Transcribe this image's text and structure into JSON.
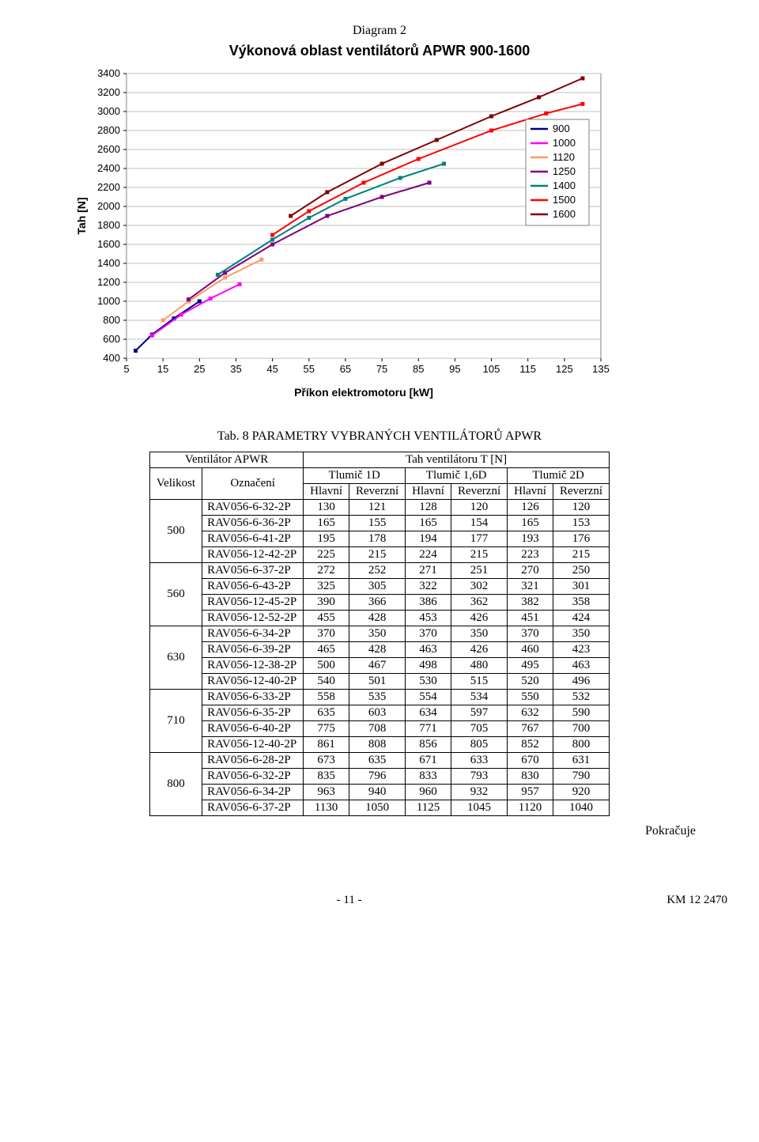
{
  "diagram_label": "Diagram 2",
  "chart": {
    "title": "Výkonová oblast ventilátorů APWR 900-1600",
    "xlabel": "Příkon elektromotoru [kW]",
    "ylabel": "Tah [N]",
    "background_color": "#ffffff",
    "plot_bg": "#ffffff",
    "plot_border": "#808080",
    "grid_color": "#c0c0c0",
    "xlim": [
      5,
      135
    ],
    "ylim": [
      400,
      3400
    ],
    "xtick_step": 10,
    "ytick_step": 200,
    "line_width": 2,
    "series": [
      {
        "name": "900",
        "color": "#000080",
        "pts": [
          [
            7.5,
            480
          ],
          [
            12,
            650
          ],
          [
            18,
            820
          ],
          [
            25,
            1000
          ]
        ]
      },
      {
        "name": "1000",
        "color": "#ff00ff",
        "pts": [
          [
            12,
            640
          ],
          [
            20,
            860
          ],
          [
            28,
            1030
          ],
          [
            36,
            1180
          ]
        ]
      },
      {
        "name": "1120",
        "color": "#ff9966",
        "pts": [
          [
            15,
            800
          ],
          [
            22,
            1000
          ],
          [
            32,
            1250
          ],
          [
            42,
            1440
          ]
        ]
      },
      {
        "name": "1250",
        "color": "#800080",
        "pts": [
          [
            22,
            1020
          ],
          [
            32,
            1300
          ],
          [
            45,
            1600
          ],
          [
            60,
            1900
          ],
          [
            75,
            2100
          ],
          [
            88,
            2250
          ]
        ]
      },
      {
        "name": "1400",
        "color": "#008080",
        "pts": [
          [
            30,
            1280
          ],
          [
            45,
            1650
          ],
          [
            55,
            1880
          ],
          [
            65,
            2080
          ],
          [
            80,
            2300
          ],
          [
            92,
            2450
          ]
        ]
      },
      {
        "name": "1500",
        "color": "#ff0000",
        "pts": [
          [
            45,
            1700
          ],
          [
            55,
            1950
          ],
          [
            70,
            2250
          ],
          [
            85,
            2500
          ],
          [
            105,
            2800
          ],
          [
            120,
            2980
          ],
          [
            130,
            3080
          ]
        ]
      },
      {
        "name": "1600",
        "color": "#800000",
        "pts": [
          [
            50,
            1900
          ],
          [
            60,
            2150
          ],
          [
            75,
            2450
          ],
          [
            90,
            2700
          ],
          [
            105,
            2950
          ],
          [
            118,
            3150
          ],
          [
            130,
            3350
          ]
        ]
      }
    ],
    "legend_bg": "#ffffff",
    "legend_border": "#808080"
  },
  "table_caption": "Tab. 8  PARAMETRY  VYBRANÝCH  VENTILÁTORŮ  APWR",
  "table": {
    "h1_left": "Ventilátor APWR",
    "h1_right": "Tah ventilátoru  T  [N]",
    "h2_size": "Velikost",
    "h2_name": "Označení",
    "h2_t1d": "Tlumič 1D",
    "h2_t16d": "Tlumič 1,6D",
    "h2_t2d": "Tlumič 2D",
    "h3_main": "Hlavní",
    "h3_rev": "Reverzní",
    "groups": [
      {
        "size": "500",
        "rows": [
          {
            "name": "RAV056-6-32-2P",
            "v": [
              130,
              121,
              128,
              120,
              126,
              120
            ]
          },
          {
            "name": "RAV056-6-36-2P",
            "v": [
              165,
              155,
              165,
              154,
              165,
              153
            ]
          },
          {
            "name": "RAV056-6-41-2P",
            "v": [
              195,
              178,
              194,
              177,
              193,
              176
            ]
          },
          {
            "name": "RAV056-12-42-2P",
            "v": [
              225,
              215,
              224,
              215,
              223,
              215
            ]
          }
        ]
      },
      {
        "size": "560",
        "rows": [
          {
            "name": "RAV056-6-37-2P",
            "v": [
              272,
              252,
              271,
              251,
              270,
              250
            ]
          },
          {
            "name": "RAV056-6-43-2P",
            "v": [
              325,
              305,
              322,
              302,
              321,
              301
            ]
          },
          {
            "name": "RAV056-12-45-2P",
            "v": [
              390,
              366,
              386,
              362,
              382,
              358
            ]
          },
          {
            "name": "RAV056-12-52-2P",
            "v": [
              455,
              428,
              453,
              426,
              451,
              424
            ]
          }
        ]
      },
      {
        "size": "630",
        "rows": [
          {
            "name": "RAV056-6-34-2P",
            "v": [
              370,
              350,
              370,
              350,
              370,
              350
            ]
          },
          {
            "name": "RAV056-6-39-2P",
            "v": [
              465,
              428,
              463,
              426,
              460,
              423
            ]
          },
          {
            "name": "RAV056-12-38-2P",
            "v": [
              500,
              467,
              498,
              480,
              495,
              463
            ]
          },
          {
            "name": "RAV056-12-40-2P",
            "v": [
              540,
              501,
              530,
              515,
              520,
              496
            ]
          }
        ]
      },
      {
        "size": "710",
        "rows": [
          {
            "name": "RAV056-6-33-2P",
            "v": [
              558,
              535,
              554,
              534,
              550,
              532
            ]
          },
          {
            "name": "RAV056-6-35-2P",
            "v": [
              635,
              603,
              634,
              597,
              632,
              590
            ]
          },
          {
            "name": "RAV056-6-40-2P",
            "v": [
              775,
              708,
              771,
              705,
              767,
              700
            ]
          },
          {
            "name": "RAV056-12-40-2P",
            "v": [
              861,
              808,
              856,
              805,
              852,
              800
            ]
          }
        ]
      },
      {
        "size": "800",
        "rows": [
          {
            "name": "RAV056-6-28-2P",
            "v": [
              673,
              635,
              671,
              633,
              670,
              631
            ]
          },
          {
            "name": "RAV056-6-32-2P",
            "v": [
              835,
              796,
              833,
              793,
              830,
              790
            ]
          },
          {
            "name": "RAV056-6-34-2P",
            "v": [
              963,
              940,
              960,
              932,
              957,
              920
            ]
          },
          {
            "name": "RAV056-6-37-2P",
            "v": [
              1130,
              1050,
              1125,
              1045,
              1120,
              1040
            ]
          }
        ]
      }
    ]
  },
  "continues_text": "Pokračuje",
  "footer_page": "- 11 -",
  "footer_doc": "KM 12 2470"
}
